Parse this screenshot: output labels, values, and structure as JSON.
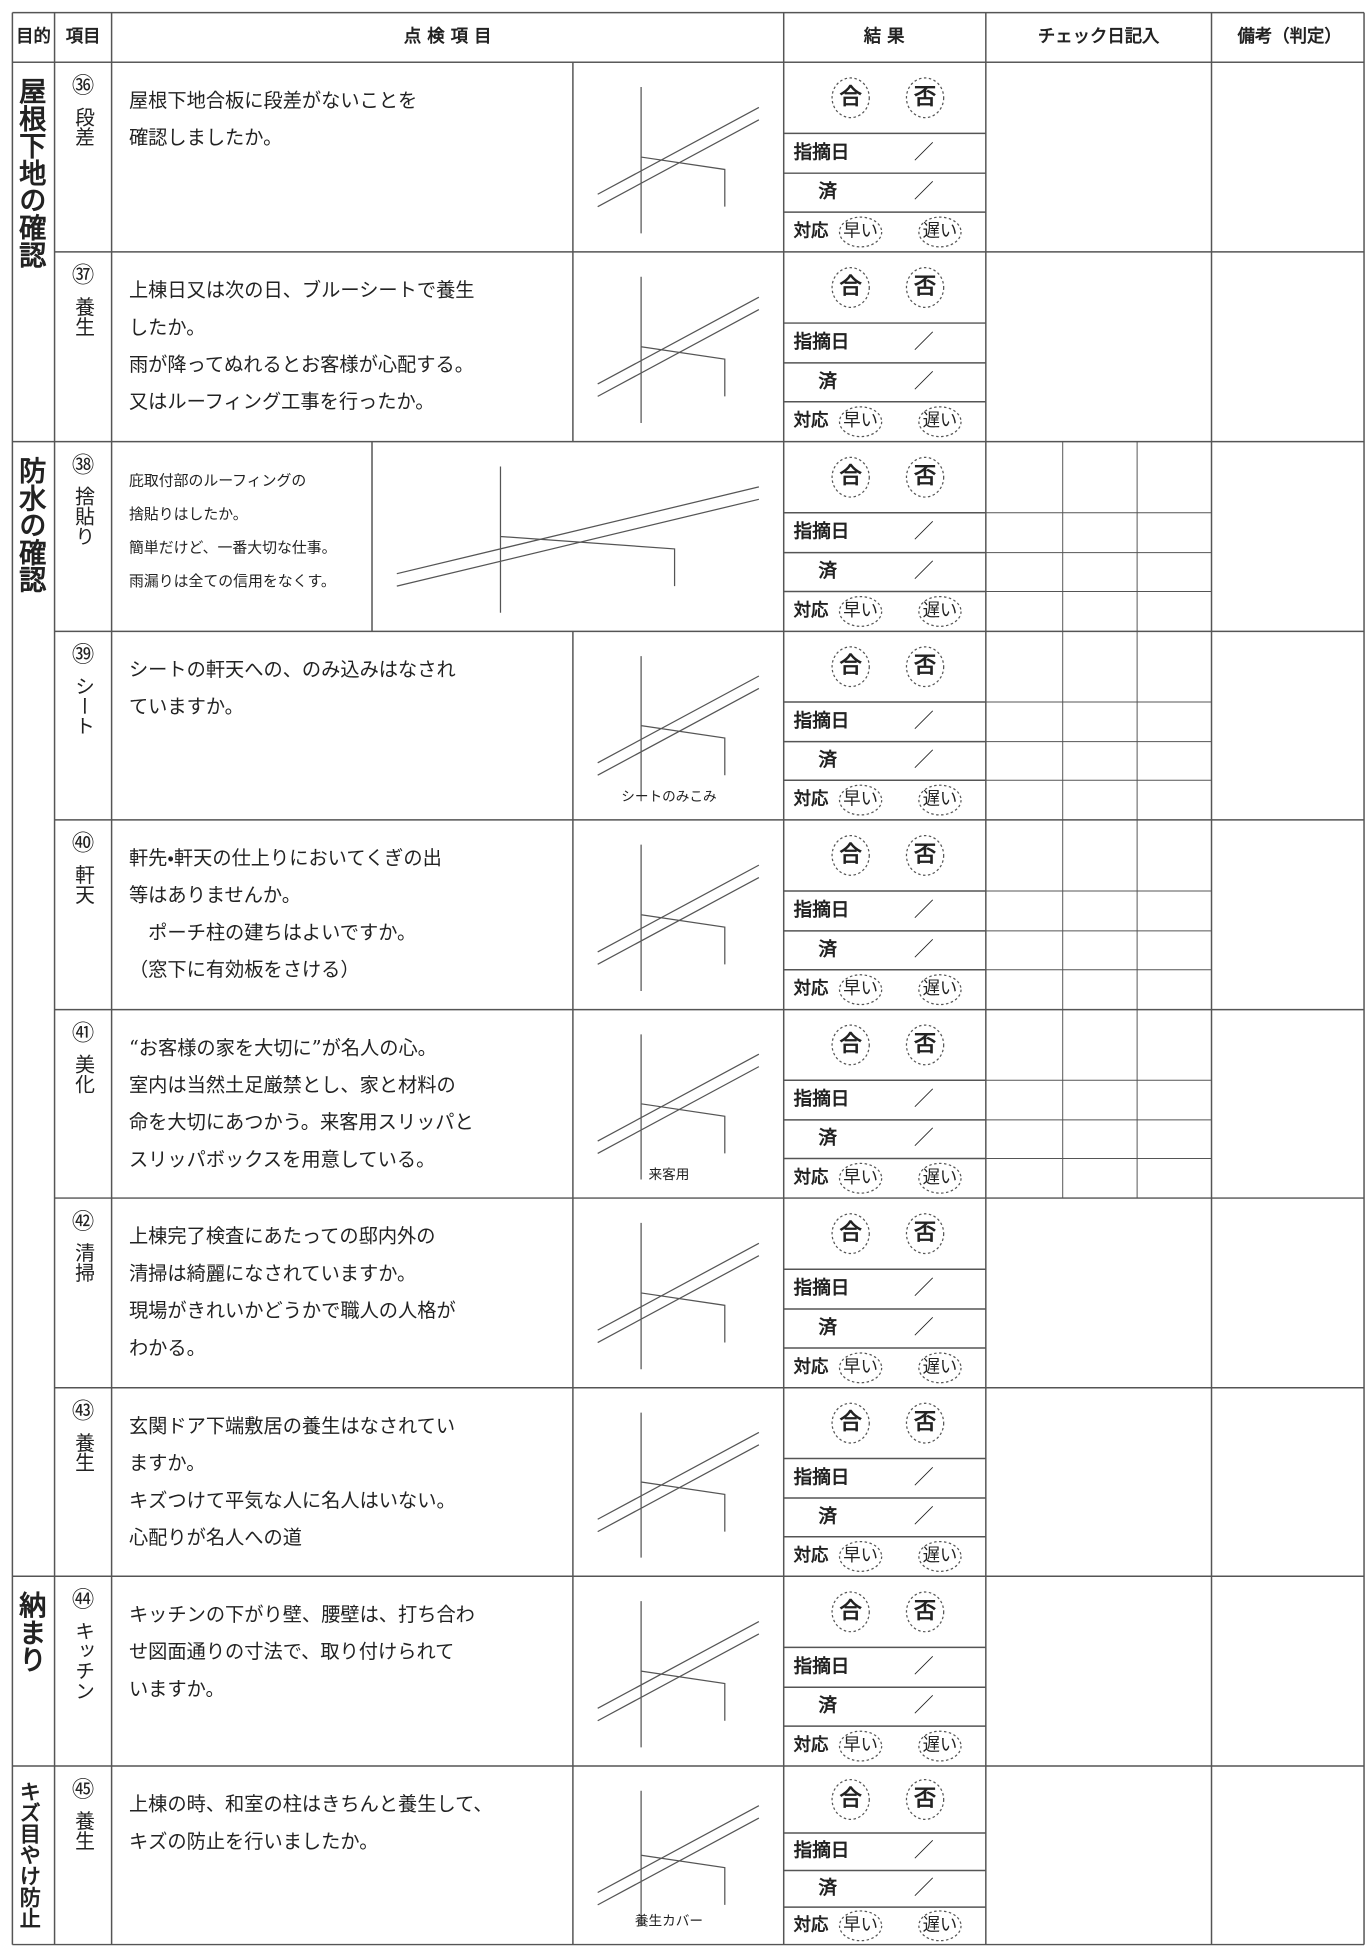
{
  "header": {
    "purpose": "目的",
    "item": "項目",
    "inspection": "点 検 項 目",
    "result": "結 果",
    "check_date": "チェック日記入",
    "remarks": "備考（判定）"
  },
  "result_labels": {
    "pass": "合",
    "fail": "否",
    "pointed_date": "指摘日",
    "slash": "／",
    "done": "済",
    "response": "対応",
    "fast": "早い",
    "slow": "遅い"
  },
  "groups": [
    {
      "label": "屋根下地の確認",
      "items": [
        {
          "number": "㊱",
          "label": "段差",
          "text": [
            "屋根下地合板に段差がないことを",
            "確認しましたか。"
          ]
        },
        {
          "number": "㊲",
          "label": "養生",
          "text": [
            "上棟日又は次の日、ブルーシートで養生",
            "したか。",
            "雨が降ってぬれるとお客様が心配する。",
            "又はルーフィング工事を行ったか。"
          ]
        }
      ]
    },
    {
      "label": "防水の確認",
      "items": [
        {
          "number": "㊳",
          "label": "捨貼り",
          "text": [
            "庇取付部のルーフィングの",
            "捨貼りはしたか。",
            "簡単だけど、一番大切な仕事。",
            "雨漏りは全ての信用をなくす。"
          ]
        },
        {
          "number": "㊴",
          "label": "シート",
          "text": [
            "シートの軒天への、のみ込みはなされ",
            "ていますか。"
          ],
          "figure_label": "シートのみこみ"
        },
        {
          "number": "㊵",
          "label": "軒天",
          "text": [
            "軒先・軒天の仕上りにおいてくぎの出",
            "等はありませんか。",
            "　ポーチ柱の建ちはよいですか。",
            "（窓下に有効板をさける）"
          ]
        },
        {
          "number": "㊶",
          "label": "美化",
          "text": [
            "“お客様の家を大切に”が名人の心。",
            "室内は当然土足厳禁とし、家と材料の",
            "命を大切にあつかう。来客用スリッパと",
            "スリッパボックスを用意している。"
          ],
          "figure_label": "来客用"
        },
        {
          "number": "㊷",
          "label": "清掃",
          "text": [
            "上棟完了検査にあたっての邸内外の",
            "清掃は綺麗になされていますか。",
            "現場がきれいかどうかで職人の人格が",
            "わかる。"
          ]
        },
        {
          "number": "㊸",
          "label": "養生",
          "text": [
            "玄関ドア下端敷居の養生はなされてい",
            "ますか。",
            "キズつけて平気な人に名人はいない。",
            "心配りが名人への道"
          ]
        }
      ]
    },
    {
      "label": "納まり",
      "items": [
        {
          "number": "㊹",
          "label": "キッチン",
          "text": [
            "キッチンの下がり壁、腰壁は、打ち合わ",
            "せ図面通りの寸法で、取り付けられて",
            "いますか。"
          ]
        }
      ]
    },
    {
      "label": "キズ目やけ防止",
      "items": [
        {
          "number": "㊺",
          "label": "養生",
          "text": [
            "上棟の時、和室の柱はきちんと養生して、",
            "キズの防止を行いましたか。"
          ],
          "figure_label": "養生カバー"
        }
      ]
    }
  ]
}
